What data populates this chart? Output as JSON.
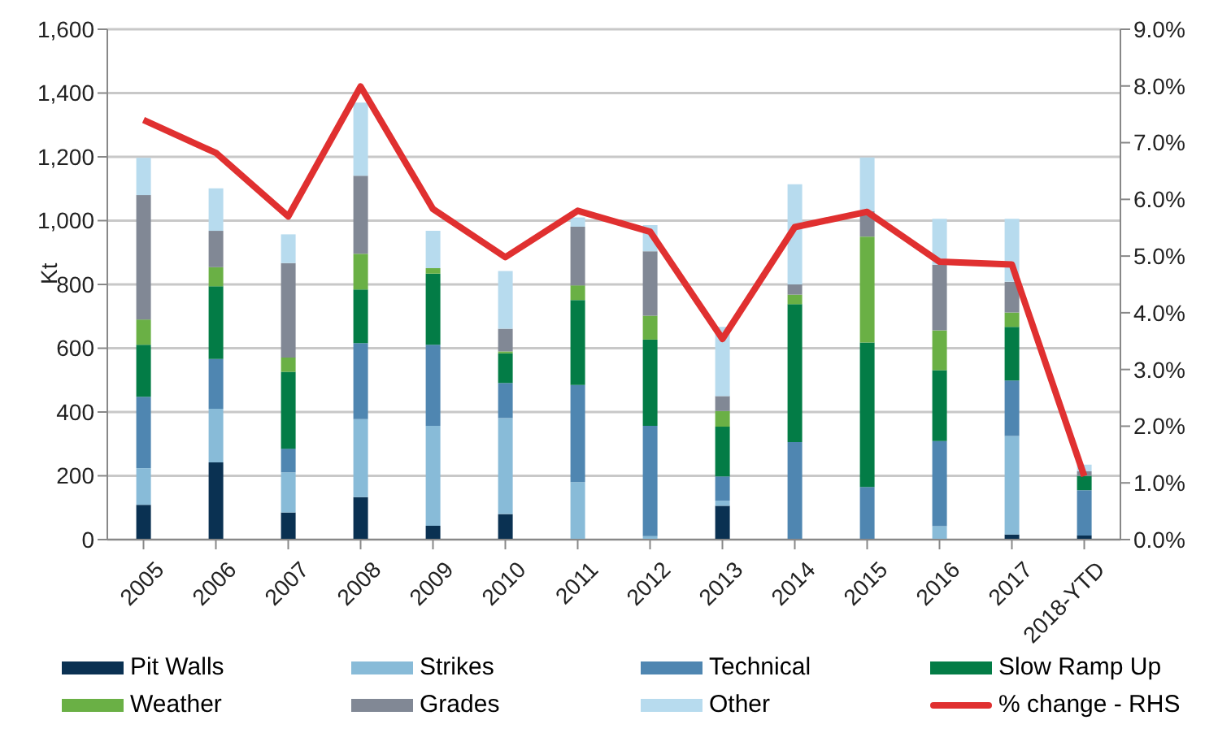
{
  "chart_data": {
    "type": "bar",
    "stacked": true,
    "ylabel": "Kt",
    "categories": [
      "2005",
      "2006",
      "2007",
      "2008",
      "2009",
      "2010",
      "2011",
      "2012",
      "2013",
      "2014",
      "2015",
      "2016",
      "2017",
      "2018-YTD"
    ],
    "series": [
      {
        "name": "Pit Walls",
        "color": "#0a3152",
        "values": [
          109,
          242,
          85,
          133,
          43,
          80,
          null,
          0,
          106,
          0,
          0,
          0,
          16,
          13
        ]
      },
      {
        "name": "Strikes",
        "color": "#88bbd8",
        "values": [
          115,
          168,
          126,
          245,
          314,
          301,
          180,
          11,
          16,
          0,
          0,
          42,
          309,
          0
        ]
      },
      {
        "name": "Technical",
        "color": "#4f86b1",
        "values": [
          224,
          156,
          74,
          238,
          254,
          110,
          305,
          346,
          76,
          306,
          165,
          267,
          174,
          142
        ]
      },
      {
        "name": "Slow Ramp Up",
        "color": "#037c46",
        "values": [
          163,
          228,
          241,
          168,
          223,
          93,
          266,
          270,
          156,
          432,
          453,
          222,
          168,
          45
        ]
      },
      {
        "name": "Weather",
        "color": "#6ab045",
        "values": [
          79,
          60,
          45,
          112,
          17,
          6,
          46,
          75,
          49,
          30,
          332,
          125,
          45,
          0
        ]
      },
      {
        "name": "Grades",
        "color": "#818895",
        "values": [
          390,
          114,
          296,
          245,
          0,
          71,
          184,
          202,
          47,
          32,
          80,
          206,
          96,
          14
        ]
      },
      {
        "name": "Other",
        "color": "#b7dbee",
        "values": [
          117,
          133,
          90,
          229,
          117,
          181,
          29,
          82,
          217,
          314,
          168,
          144,
          198,
          21
        ]
      },
      {
        "name": "% change - RHS",
        "type": "line",
        "axis": "y2",
        "color": "#e03030",
        "values": [
          7.4,
          6.82,
          5.7,
          7.99,
          5.83,
          4.98,
          5.8,
          5.43,
          3.54,
          5.51,
          5.78,
          4.9,
          4.85,
          1.12
        ]
      }
    ],
    "ylim": [
      0,
      1600
    ],
    "yticks": [
      0,
      200,
      400,
      600,
      800,
      {
        "value": 1000,
        "label": "1,000"
      },
      {
        "value": 1200,
        "label": "1,200"
      },
      {
        "value": 1400,
        "label": "1,400"
      },
      {
        "value": 1600,
        "label": "1,600"
      }
    ],
    "y2lim": [
      0,
      9
    ],
    "y2ticks": [
      {
        "value": 0,
        "label": "0.0%"
      },
      {
        "value": 1,
        "label": "1.0%"
      },
      {
        "value": 2,
        "label": "2.0%"
      },
      {
        "value": 3,
        "label": "3.0%"
      },
      {
        "value": 4,
        "label": "4.0%"
      },
      {
        "value": 5,
        "label": "5.0%"
      },
      {
        "value": 6,
        "label": "6.0%"
      },
      {
        "value": 7,
        "label": "7.0%"
      },
      {
        "value": 8,
        "label": "8.0%"
      },
      {
        "value": 9,
        "label": "9.0%"
      }
    ],
    "grid": "y",
    "legend": "bottom",
    "marker": "none"
  }
}
